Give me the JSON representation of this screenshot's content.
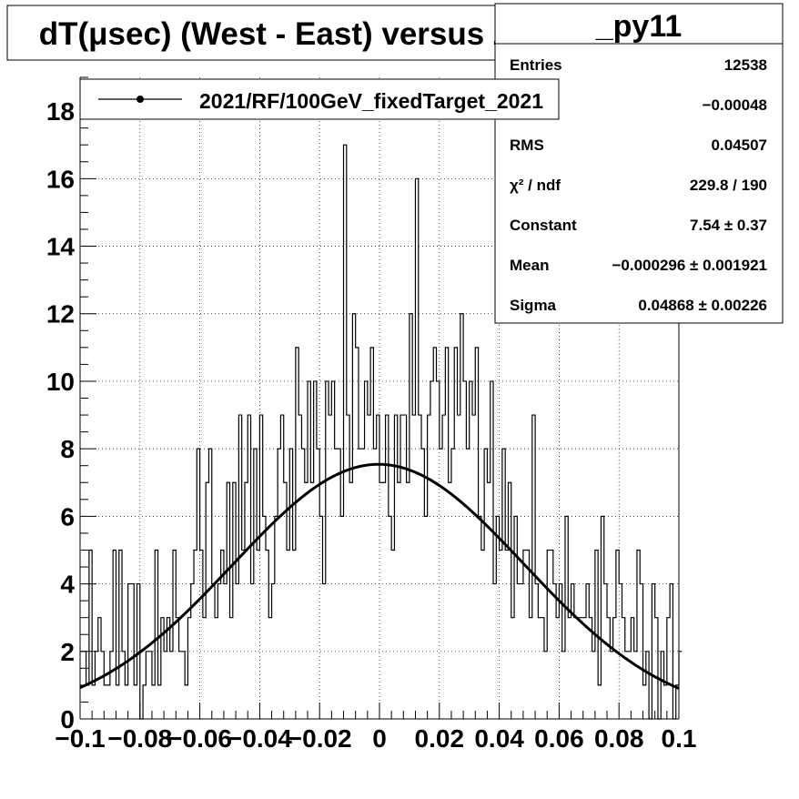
{
  "chart_data": {
    "type": "histogram",
    "title": "dT(μsec) (West - East) versus Z",
    "stats_title": "_py11",
    "legend": {
      "label": "2021/RF/100GeV_fixedTarget_2021",
      "position": "top-left"
    },
    "xlim": [
      -0.1,
      0.1
    ],
    "ylim": [
      0,
      19
    ],
    "x_ticks": [
      -0.1,
      -0.08,
      -0.06,
      -0.04,
      -0.02,
      0,
      0.02,
      0.04,
      0.06,
      0.08,
      0.1
    ],
    "x_tick_labels": [
      "−0.1",
      "−0.08",
      "−0.06",
      "−0.04",
      "−0.02",
      "0",
      "0.02",
      "0.04",
      "0.06",
      "0.08",
      "0.1"
    ],
    "y_ticks": [
      0,
      2,
      4,
      6,
      8,
      10,
      12,
      14,
      16,
      18
    ],
    "y_tick_labels": [
      "0",
      "2",
      "4",
      "6",
      "8",
      "10",
      "12",
      "14",
      "16",
      "18"
    ],
    "grid": true,
    "stats": [
      {
        "label": "Entries",
        "value": "12538"
      },
      {
        "label": "",
        "value": "−0.00048"
      },
      {
        "label": "RMS",
        "value": "0.04507"
      },
      {
        "label": "χ² / ndf",
        "value": "229.8 / 190"
      },
      {
        "label": "Constant",
        "value": "7.54 ± 0.37"
      },
      {
        "label": "Mean",
        "value": "−0.000296 ± 0.001921"
      },
      {
        "label": "Sigma",
        "value": "0.04868 ± 0.00226"
      }
    ],
    "fit": {
      "function": "gaus",
      "constant": 7.54,
      "mean": -0.000296,
      "sigma": 0.04868
    },
    "bins": {
      "low": -0.1,
      "width": 0.001,
      "counts": [
        2,
        2,
        1,
        5,
        1,
        2,
        3,
        2,
        1,
        1,
        2,
        5,
        1,
        5,
        2,
        1,
        4,
        4,
        1,
        4,
        0,
        1,
        2,
        2,
        1,
        5,
        1,
        3,
        2,
        3,
        2,
        5,
        3,
        2,
        2,
        1,
        3,
        4,
        5,
        8,
        5,
        3,
        7,
        8,
        4,
        3,
        4,
        5,
        4,
        7,
        3,
        7,
        4,
        9,
        5,
        7,
        9,
        4,
        8,
        5,
        9,
        6,
        5,
        3,
        4,
        6,
        8,
        9,
        7,
        5,
        8,
        5,
        11,
        9,
        8,
        7,
        10,
        7,
        10,
        8,
        6,
        4,
        10,
        9,
        10,
        8,
        8,
        6,
        17,
        9,
        7,
        12,
        11,
        8,
        8,
        10,
        9,
        11,
        8,
        9,
        7,
        7,
        9,
        6,
        5,
        9,
        7,
        9,
        9,
        7,
        12,
        9,
        16,
        9,
        8,
        6,
        9,
        10,
        11,
        10,
        8,
        9,
        11,
        7,
        8,
        11,
        9,
        12,
        10,
        8,
        10,
        9,
        11,
        6,
        5,
        8,
        7,
        10,
        4,
        6,
        5,
        8,
        5,
        7,
        3,
        6,
        4,
        4,
        5,
        5,
        3,
        9,
        4,
        3,
        3,
        2,
        5,
        5,
        4,
        3,
        4,
        2,
        6,
        3,
        4,
        3,
        3,
        3,
        3,
        4,
        3,
        2,
        5,
        1,
        6,
        4,
        3,
        2,
        3,
        5,
        4,
        3,
        2,
        2,
        3,
        2,
        5,
        4,
        1,
        2,
        0,
        4,
        3,
        0,
        2,
        1,
        3,
        4,
        0,
        1,
        2
      ]
    }
  }
}
